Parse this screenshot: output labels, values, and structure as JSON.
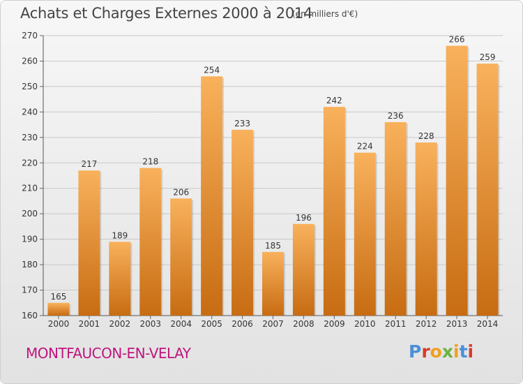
{
  "header": {
    "title": "Achats et Charges Externes 2000 à 2014",
    "subtitle": "(en milliers d'€)"
  },
  "footer": {
    "place": "MONTFAUCON-EN-VELAY",
    "logo_text": "Proxiti"
  },
  "colors": {
    "bar_light": "#f9b15c",
    "bar_dark": "#c76c12",
    "place": "#c0147d",
    "logo_letters": [
      "#4a90d9",
      "#d93a2b",
      "#f0a020",
      "#6cb33f",
      "#f0a020",
      "#4a90d9",
      "#d93a2b"
    ]
  },
  "chart_data": {
    "type": "bar",
    "title": "Achats et Charges Externes 2000 à 2014",
    "subtitle": "(en milliers d'€)",
    "xlabel": "",
    "ylabel": "",
    "categories": [
      "2000",
      "2001",
      "2002",
      "2003",
      "2004",
      "2005",
      "2006",
      "2007",
      "2008",
      "2009",
      "2010",
      "2011",
      "2012",
      "2013",
      "2014"
    ],
    "values": [
      165,
      217,
      189,
      218,
      206,
      254,
      233,
      185,
      196,
      242,
      224,
      236,
      228,
      266,
      259
    ],
    "ylim": [
      160,
      270
    ],
    "yticks": [
      160,
      170,
      180,
      190,
      200,
      210,
      220,
      230,
      240,
      250,
      260,
      270
    ],
    "grid": true,
    "data_labels": true
  }
}
